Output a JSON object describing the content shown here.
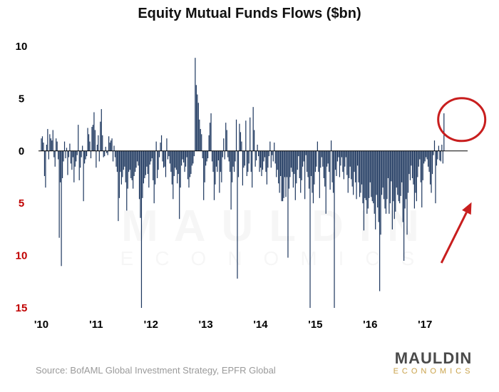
{
  "title": "Equity Mutual Funds Flows ($bn)",
  "source": "Source: BofAML Global Investment Strategy, EPFR Global",
  "brand": {
    "top": "MAULDIN",
    "bottom": "ECONOMICS"
  },
  "watermark": {
    "line1": "MAULDIN",
    "line2": "ECONOMICS"
  },
  "colors": {
    "bar": "#1c365e",
    "annotation": "#c81e1e",
    "negative_tick": "#c00000",
    "axis": "#000000"
  },
  "chart_data": {
    "type": "bar",
    "title": "Equity Mutual Funds Flows ($bn)",
    "xlabel": "",
    "ylabel": "",
    "ylim": [
      -15,
      10
    ],
    "y_ticks": [
      {
        "value": 10,
        "label": "10",
        "negative": false
      },
      {
        "value": 5,
        "label": "5",
        "negative": false
      },
      {
        "value": 0,
        "label": "0",
        "negative": false
      },
      {
        "value": -5,
        "label": "5",
        "negative": true
      },
      {
        "value": -10,
        "label": "10",
        "negative": true
      },
      {
        "value": -15,
        "label": "15",
        "negative": true
      }
    ],
    "x_ticks": [
      {
        "position": 2010.0,
        "label": "'10"
      },
      {
        "position": 2011.0,
        "label": "'11"
      },
      {
        "position": 2012.0,
        "label": "'12"
      },
      {
        "position": 2013.0,
        "label": "'13"
      },
      {
        "position": 2014.0,
        "label": "'14"
      },
      {
        "position": 2015.0,
        "label": "'15"
      },
      {
        "position": 2016.0,
        "label": "'16"
      },
      {
        "position": 2017.0,
        "label": "'17"
      }
    ],
    "x_range": [
      2010.0,
      2017.7
    ],
    "grid": false,
    "series": [
      {
        "name": "",
        "x_start": 2010.0,
        "x_step": 0.0192307692,
        "values": [
          1.2,
          1.4,
          0.8,
          -2.4,
          -3.5,
          0.6,
          2.1,
          -0.8,
          1.6,
          1.2,
          1.0,
          2.0,
          -0.6,
          -1.5,
          1.2,
          0.9,
          -0.8,
          -8.3,
          -3.0,
          -11.0,
          -2.6,
          -1.0,
          0.9,
          -0.7,
          0.3,
          -2.3,
          -0.6,
          0.7,
          -1.2,
          -1.8,
          -0.6,
          -3.0,
          -1.5,
          -1.0,
          -0.4,
          2.5,
          -2.8,
          -1.6,
          -0.6,
          0.5,
          -4.8,
          -1.2,
          -0.8,
          -0.5,
          2.2,
          1.6,
          0.9,
          -0.7,
          2.3,
          2.5,
          3.7,
          2.0,
          -1.6,
          0.6,
          1.5,
          -1.0,
          2.8,
          4.0,
          1.5,
          -0.6,
          -0.5,
          0.4,
          -0.2,
          -0.4,
          1.4,
          0.8,
          1.0,
          1.2,
          -1.0,
          0.5,
          -0.6,
          -1.5,
          -2.0,
          -6.7,
          -4.5,
          -2.0,
          -3.2,
          -2.5,
          -1.8,
          -1.5,
          -3.0,
          -5.7,
          -3.6,
          -2.0,
          -1.8,
          -2.6,
          -2.8,
          -3.6,
          -2.4,
          -2.0,
          -1.6,
          -1.0,
          -1.4,
          -4.6,
          -6.4,
          -15.0,
          -4.5,
          -3.1,
          -2.6,
          -2.3,
          -1.5,
          -2.2,
          -3.5,
          -1.3,
          -1.0,
          -0.7,
          -2.8,
          -5.0,
          -3.2,
          0.9,
          -2.6,
          -1.8,
          -0.6,
          0.8,
          1.5,
          -1.0,
          -1.6,
          -1.5,
          -2.5,
          1.2,
          -0.8,
          -0.5,
          -1.2,
          -2.0,
          -3.2,
          -4.6,
          -2.4,
          -1.6,
          -1.8,
          -3.1,
          -2.2,
          -6.5,
          -3.5,
          -1.4,
          -0.8,
          -1.1,
          -2.0,
          -1.5,
          -0.6,
          -2.7,
          -3.5,
          -2.5,
          -2.2,
          -1.4,
          -1.2,
          -0.5,
          8.9,
          6.3,
          5.4,
          4.6,
          3.0,
          2.1,
          1.6,
          -0.7,
          -4.7,
          -3.0,
          -1.4,
          -1.0,
          -0.7,
          1.5,
          2.7,
          3.6,
          -1.0,
          -2.0,
          -4.7,
          -3.2,
          -1.5,
          -2.0,
          -0.9,
          -4.0,
          -2.0,
          -3.0,
          -0.6,
          1.2,
          -0.8,
          2.7,
          2.0,
          -0.6,
          -1.0,
          -2.0,
          -5.6,
          -3.0,
          -1.5,
          -2.0,
          -1.0,
          3.0,
          -12.2,
          -2.5,
          2.6,
          1.8,
          0.9,
          -3.3,
          -1.6,
          -1.4,
          2.9,
          -2.4,
          -2.0,
          -1.2,
          3.2,
          -2.0,
          -3.5,
          4.2,
          2.0,
          -1.5,
          -0.9,
          0.6,
          -0.5,
          -2.0,
          -1.6,
          -2.4,
          -1.8,
          -1.0,
          -0.6,
          -2.0,
          -3.2,
          -1.6,
          -0.5,
          0.9,
          -1.6,
          -0.4,
          -1.0,
          0.8,
          -1.2,
          -2.5,
          -1.8,
          -3.1,
          -4.0,
          -2.4,
          -4.8,
          -4.8,
          -4.5,
          -2.5,
          -4.4,
          -2.5,
          -10.2,
          -3.6,
          -2.5,
          -1.6,
          -2.0,
          -3.5,
          -2.2,
          -4.7,
          -3.1,
          -1.8,
          -0.5,
          -2.6,
          -4.0,
          -2.8,
          -1.5,
          -1.0,
          -4.6,
          -0.4,
          -2.0,
          -2.5,
          -3.6,
          -15.0,
          -2.4,
          -4.0,
          -5.0,
          -3.2,
          -2.0,
          -1.5,
          0.9,
          -2.0,
          -4.5,
          -1.6,
          -0.6,
          -1.5,
          -2.6,
          -3.4,
          -6.0,
          -1.5,
          -1.2,
          -2.0,
          -3.7,
          1.0,
          -3.0,
          -4.0,
          -15.0,
          -1.8,
          -2.4,
          -1.0,
          -0.6,
          -2.5,
          -1.4,
          -0.6,
          -2.0,
          -2.7,
          -1.5,
          -0.6,
          -2.3,
          -4.0,
          -2.6,
          -1.5,
          -2.7,
          -3.4,
          -4.2,
          -2.0,
          -3.0,
          -4.6,
          -1.4,
          -3.0,
          -4.4,
          -4.0,
          -3.2,
          -5.0,
          -7.6,
          -4.5,
          -4.7,
          -6.0,
          -5.5,
          -4.5,
          -3.0,
          -4.4,
          -4.8,
          -5.0,
          -6.0,
          -7.5,
          -4.2,
          -5.4,
          -6.8,
          -13.4,
          -8.0,
          -4.2,
          -3.5,
          -4.6,
          -5.5,
          -6.0,
          -4.6,
          -2.6,
          -6.0,
          -5.0,
          -2.9,
          -7.5,
          -4.8,
          -6.5,
          -5.8,
          -3.5,
          -4.2,
          -4.8,
          -5.0,
          -4.3,
          -3.0,
          -6.8,
          -10.5,
          -5.5,
          -4.6,
          -8.0,
          -4.0,
          -2.2,
          -2.8,
          -1.4,
          -2.6,
          -3.2,
          -5.5,
          -4.0,
          -4.8,
          -2.5,
          -1.5,
          -0.8,
          -3.0,
          -5.4,
          -2.8,
          -1.2,
          -1.0,
          -0.6,
          -0.8,
          -1.5,
          -2.0,
          -3.2,
          -4.0,
          -2.2,
          -0.4,
          1.0,
          -5.0,
          -1.4,
          -0.8,
          0.5,
          -0.9,
          -1.0,
          0.6,
          -1.2,
          3.6
        ]
      }
    ],
    "annotations": [
      {
        "type": "circle",
        "target_x": 2017.67,
        "target_y": 3.0
      },
      {
        "type": "arrow",
        "from": [
          2017.3,
          -10.7
        ],
        "to": [
          2017.85,
          -4.9
        ]
      }
    ]
  }
}
